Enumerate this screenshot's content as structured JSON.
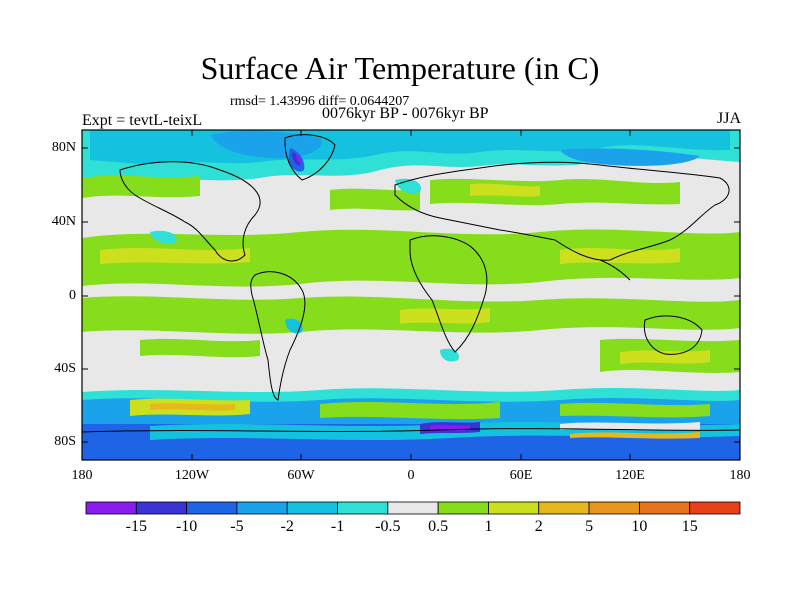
{
  "title": "Surface Air Temperature (in C)",
  "stats": "rmsd= 1.43996 diff= 0.0644207",
  "periods": "0076kyr BP - 0076kyr BP",
  "expt": "Expt = tevtL-teixL",
  "season": "JJA",
  "lat_labels": [
    "80N",
    "40N",
    "0",
    "40S",
    "80S"
  ],
  "lon_labels": [
    "180",
    "120W",
    "60W",
    "0",
    "60E",
    "120E",
    "180"
  ],
  "colorbar": {
    "labels": [
      "-15",
      "-10",
      "-5",
      "-2",
      "-1",
      "-0.5",
      "0.5",
      "1",
      "2",
      "5",
      "10",
      "15"
    ],
    "colors": [
      "#8a1cf0",
      "#3a33d6",
      "#1f63e6",
      "#1aa3ea",
      "#14c2e0",
      "#2fe0d6",
      "#e8e8e8",
      "#86dd1c",
      "#cce01e",
      "#e6b81e",
      "#e8961e",
      "#e6731e",
      "#e8401a"
    ]
  }
}
